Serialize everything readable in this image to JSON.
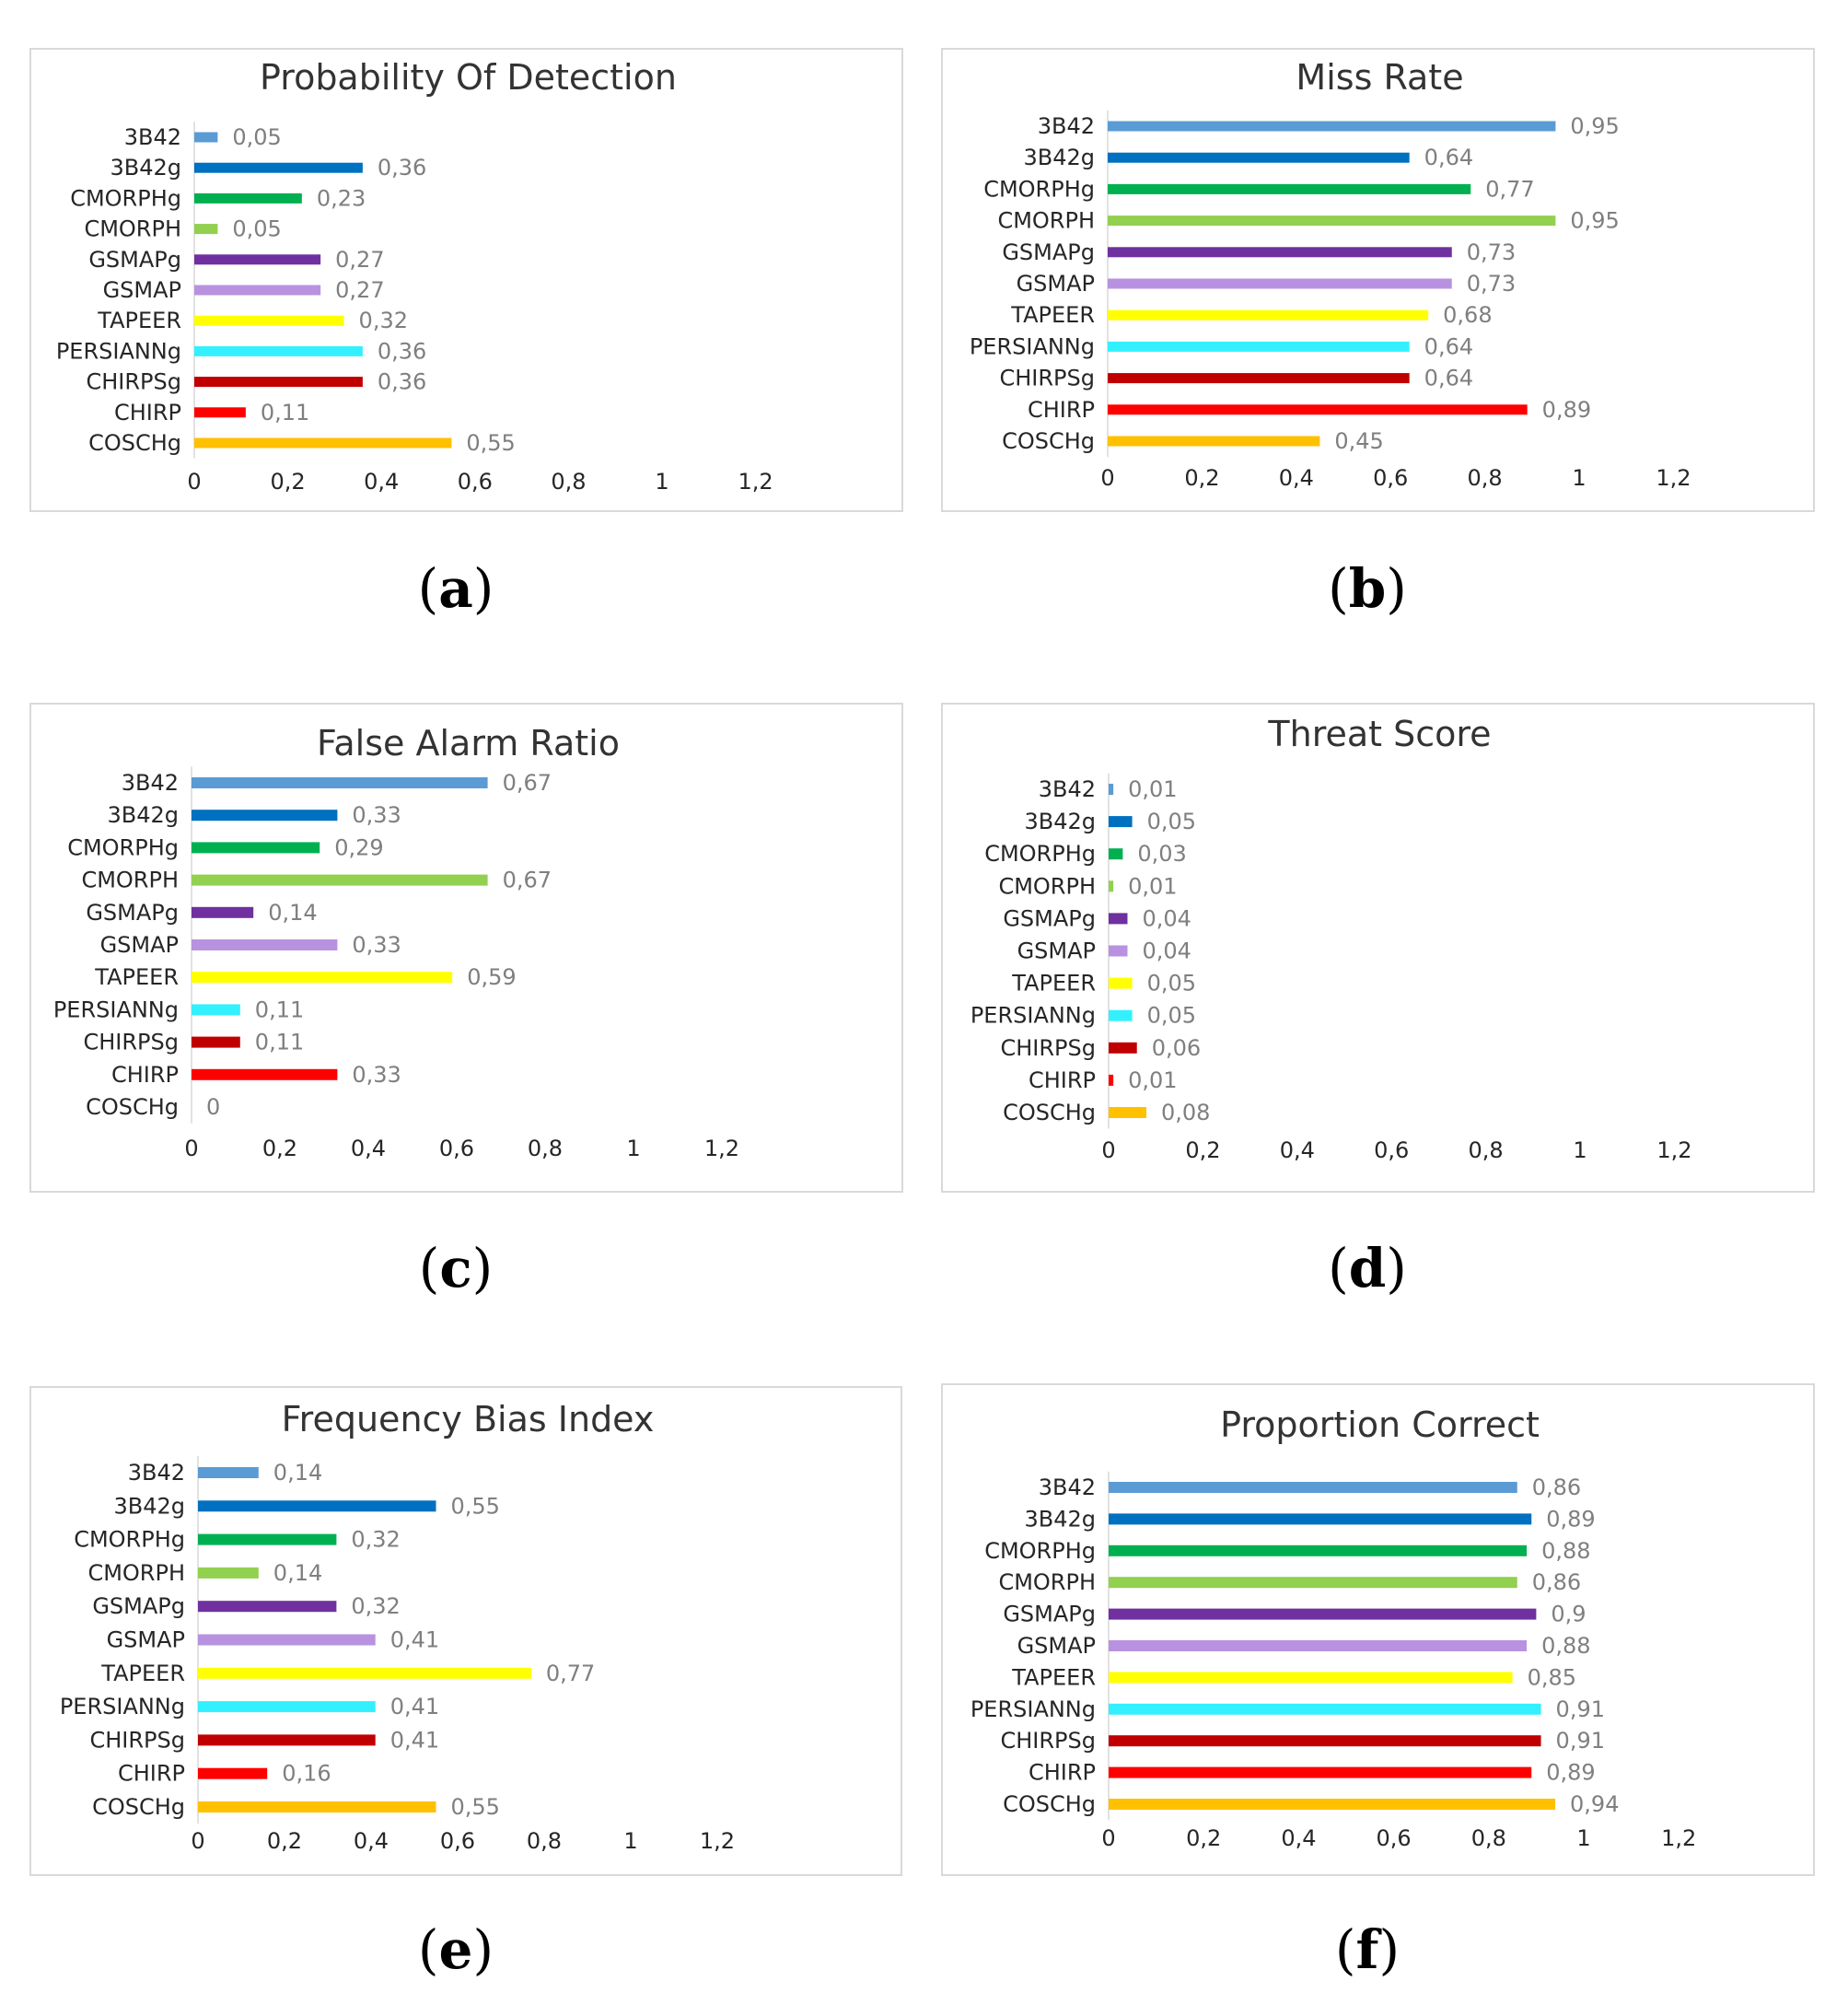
{
  "chart_data": [
    {
      "id": "a",
      "type": "bar",
      "orientation": "horizontal",
      "title": "Probability Of Detection",
      "caption": "a",
      "categories": [
        "3B42",
        "3B42g",
        "CMORPHg",
        "CMORPH",
        "GSMAPg",
        "GSMAP",
        "TAPEER",
        "PERSIANNg",
        "CHIRPSg",
        "CHIRP",
        "COSCHg"
      ],
      "values": [
        0.05,
        0.36,
        0.23,
        0.05,
        0.27,
        0.27,
        0.32,
        0.36,
        0.36,
        0.11,
        0.55
      ],
      "value_labels": [
        "0,05",
        "0,36",
        "0,23",
        "0,05",
        "0,27",
        "0,27",
        "0,32",
        "0,36",
        "0,36",
        "0,11",
        "0,55"
      ],
      "xlim": [
        0,
        1.2
      ],
      "ticks": [
        "0",
        "0,2",
        "0,4",
        "0,6",
        "0,8",
        "1",
        "1,2"
      ],
      "xlabel": "",
      "ylabel": ""
    },
    {
      "id": "b",
      "type": "bar",
      "orientation": "horizontal",
      "title": "Miss Rate",
      "caption": "b",
      "categories": [
        "3B42",
        "3B42g",
        "CMORPHg",
        "CMORPH",
        "GSMAPg",
        "GSMAP",
        "TAPEER",
        "PERSIANNg",
        "CHIRPSg",
        "CHIRP",
        "COSCHg"
      ],
      "values": [
        0.95,
        0.64,
        0.77,
        0.95,
        0.73,
        0.73,
        0.68,
        0.64,
        0.64,
        0.89,
        0.45
      ],
      "value_labels": [
        "0,95",
        "0,64",
        "0,77",
        "0,95",
        "0,73",
        "0,73",
        "0,68",
        "0,64",
        "0,64",
        "0,89",
        "0,45"
      ],
      "xlim": [
        0,
        1.2
      ],
      "ticks": [
        "0",
        "0,2",
        "0,4",
        "0,6",
        "0,8",
        "1",
        "1,2"
      ],
      "xlabel": "",
      "ylabel": ""
    },
    {
      "id": "c",
      "type": "bar",
      "orientation": "horizontal",
      "title": "False Alarm Ratio",
      "caption": "c",
      "categories": [
        "3B42",
        "3B42g",
        "CMORPHg",
        "CMORPH",
        "GSMAPg",
        "GSMAP",
        "TAPEER",
        "PERSIANNg",
        "CHIRPSg",
        "CHIRP",
        "COSCHg"
      ],
      "values": [
        0.67,
        0.33,
        0.29,
        0.67,
        0.14,
        0.33,
        0.59,
        0.11,
        0.11,
        0.33,
        0
      ],
      "value_labels": [
        "0,67",
        "0,33",
        "0,29",
        "0,67",
        "0,14",
        "0,33",
        "0,59",
        "0,11",
        "0,11",
        "0,33",
        "0"
      ],
      "xlim": [
        0,
        1.2
      ],
      "ticks": [
        "0",
        "0,2",
        "0,4",
        "0,6",
        "0,8",
        "1",
        "1,2"
      ],
      "xlabel": "",
      "ylabel": ""
    },
    {
      "id": "d",
      "type": "bar",
      "orientation": "horizontal",
      "title": "Threat Score",
      "caption": "d",
      "categories": [
        "3B42",
        "3B42g",
        "CMORPHg",
        "CMORPH",
        "GSMAPg",
        "GSMAP",
        "TAPEER",
        "PERSIANNg",
        "CHIRPSg",
        "CHIRP",
        "COSCHg"
      ],
      "values": [
        0.01,
        0.05,
        0.03,
        0.01,
        0.04,
        0.04,
        0.05,
        0.05,
        0.06,
        0.01,
        0.08
      ],
      "value_labels": [
        "0,01",
        "0,05",
        "0,03",
        "0,01",
        "0,04",
        "0,04",
        "0,05",
        "0,05",
        "0,06",
        "0,01",
        "0,08"
      ],
      "xlim": [
        0,
        1.2
      ],
      "ticks": [
        "0",
        "0,2",
        "0,4",
        "0,6",
        "0,8",
        "1",
        "1,2"
      ],
      "xlabel": "",
      "ylabel": ""
    },
    {
      "id": "e",
      "type": "bar",
      "orientation": "horizontal",
      "title": "Frequency Bias Index",
      "caption": "e",
      "categories": [
        "3B42",
        "3B42g",
        "CMORPHg",
        "CMORPH",
        "GSMAPg",
        "GSMAP",
        "TAPEER",
        "PERSIANNg",
        "CHIRPSg",
        "CHIRP",
        "COSCHg"
      ],
      "values": [
        0.14,
        0.55,
        0.32,
        0.14,
        0.32,
        0.41,
        0.77,
        0.41,
        0.41,
        0.16,
        0.55
      ],
      "value_labels": [
        "0,14",
        "0,55",
        "0,32",
        "0,14",
        "0,32",
        "0,41",
        "0,77",
        "0,41",
        "0,41",
        "0,16",
        "0,55"
      ],
      "xlim": [
        0,
        1.2
      ],
      "ticks": [
        "0",
        "0,2",
        "0,4",
        "0,6",
        "0,8",
        "1",
        "1,2"
      ],
      "xlabel": "",
      "ylabel": ""
    },
    {
      "id": "f",
      "type": "bar",
      "orientation": "horizontal",
      "title": "Proportion Correct",
      "caption": "f",
      "categories": [
        "3B42",
        "3B42g",
        "CMORPHg",
        "CMORPH",
        "GSMAPg",
        "GSMAP",
        "TAPEER",
        "PERSIANNg",
        "CHIRPSg",
        "CHIRP",
        "COSCHg"
      ],
      "values": [
        0.86,
        0.89,
        0.88,
        0.86,
        0.9,
        0.88,
        0.85,
        0.91,
        0.91,
        0.89,
        0.94
      ],
      "value_labels": [
        "0,86",
        "0,89",
        "0,88",
        "0,86",
        "0,9",
        "0,88",
        "0,85",
        "0,91",
        "0,91",
        "0,89",
        "0,94"
      ],
      "xlim": [
        0,
        1.2
      ],
      "ticks": [
        "0",
        "0,2",
        "0,4",
        "0,6",
        "0,8",
        "1",
        "1,2"
      ],
      "xlabel": "",
      "ylabel": ""
    }
  ],
  "colors": {
    "3B42": "#5b9bd5",
    "3B42g": "#0070c0",
    "CMORPHg": "#00b050",
    "CMORPH": "#92d050",
    "GSMAPg": "#7030a0",
    "GSMAP": "#b892e0",
    "TAPEER": "#ffff00",
    "PERSIANNg": "#33f0ff",
    "CHIRPSg": "#c00000",
    "CHIRP": "#ff0000",
    "COSCHg": "#ffc000"
  }
}
